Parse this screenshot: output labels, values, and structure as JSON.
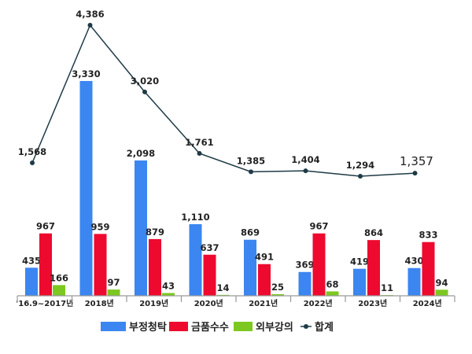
{
  "chart_data": {
    "type": "bar+line",
    "categories": [
      "'16.9~2017년",
      "2018년",
      "2019년",
      "2020년",
      "2021년",
      "2022년",
      "2023년",
      "2024년"
    ],
    "series": [
      {
        "name": "부정청탁",
        "type": "bar",
        "color": "#3b86f0",
        "values": [
          435,
          3330,
          2098,
          1110,
          869,
          369,
          419,
          430
        ],
        "labels": [
          "435",
          "3,330",
          "2,098",
          "1,110",
          "869",
          "369",
          "419",
          "430"
        ]
      },
      {
        "name": "금품수수",
        "type": "bar",
        "color": "#ee0a2e",
        "values": [
          967,
          959,
          879,
          637,
          491,
          967,
          864,
          833
        ],
        "labels": [
          "967",
          "959",
          "879",
          "637",
          "491",
          "967",
          "864",
          "833"
        ]
      },
      {
        "name": "외부강의",
        "type": "bar",
        "color": "#7cc820",
        "values": [
          166,
          97,
          43,
          14,
          25,
          68,
          11,
          94
        ],
        "labels": [
          "166",
          "97",
          "43",
          "14",
          "25",
          "68",
          "11",
          "94"
        ]
      },
      {
        "name": "합계",
        "type": "line",
        "color": "#1e3a46",
        "values": [
          1568,
          4386,
          3020,
          1761,
          1385,
          1404,
          1294,
          1357
        ],
        "labels": [
          "1,568",
          "4,386",
          "3,020",
          "1,761",
          "1,385",
          "1,404",
          "1,294",
          "1,357"
        ],
        "highlight_last_color": "#e8322e"
      }
    ],
    "legend_position": "bottom",
    "grid": false
  }
}
